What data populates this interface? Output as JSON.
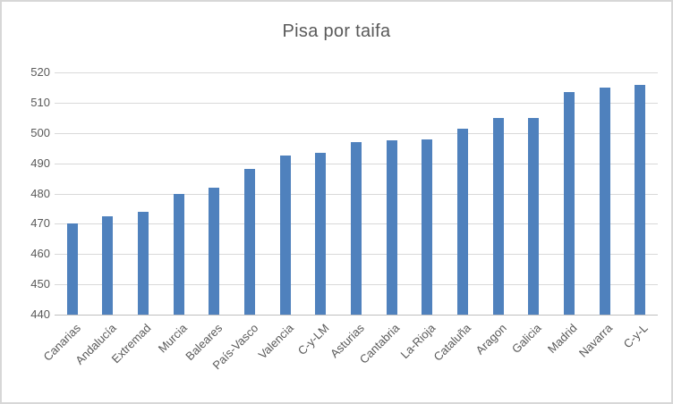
{
  "chart_data": {
    "type": "bar",
    "title": "Pisa por taifa",
    "categories": [
      "Canarias",
      "Andalucía",
      "Extremad",
      "Murcia",
      "Baleares",
      "País-Vasco",
      "Valencia",
      "C-y-LM",
      "Asturias",
      "Cantabria",
      "La-Rioja",
      "Cataluña",
      "Aragon",
      "Galicia",
      "Madrid",
      "Navarra",
      "C-y-L"
    ],
    "values": [
      470,
      472.5,
      474,
      480,
      482,
      488,
      492.5,
      493.5,
      497,
      497.5,
      498,
      501.5,
      505,
      505,
      513.5,
      515,
      516
    ],
    "xlabel": "",
    "ylabel": "",
    "ylim": [
      440,
      520
    ],
    "yticks": [
      440,
      450,
      460,
      470,
      480,
      490,
      500,
      510,
      520
    ],
    "grid": true,
    "legend": "none",
    "colors": {
      "bar_fill": "#4F81BD",
      "gridline": "#D9D9D9",
      "axis_line": "#BFBFBF",
      "text": "#595959",
      "border": "#D7D7D7",
      "background": "#FFFFFF"
    }
  }
}
